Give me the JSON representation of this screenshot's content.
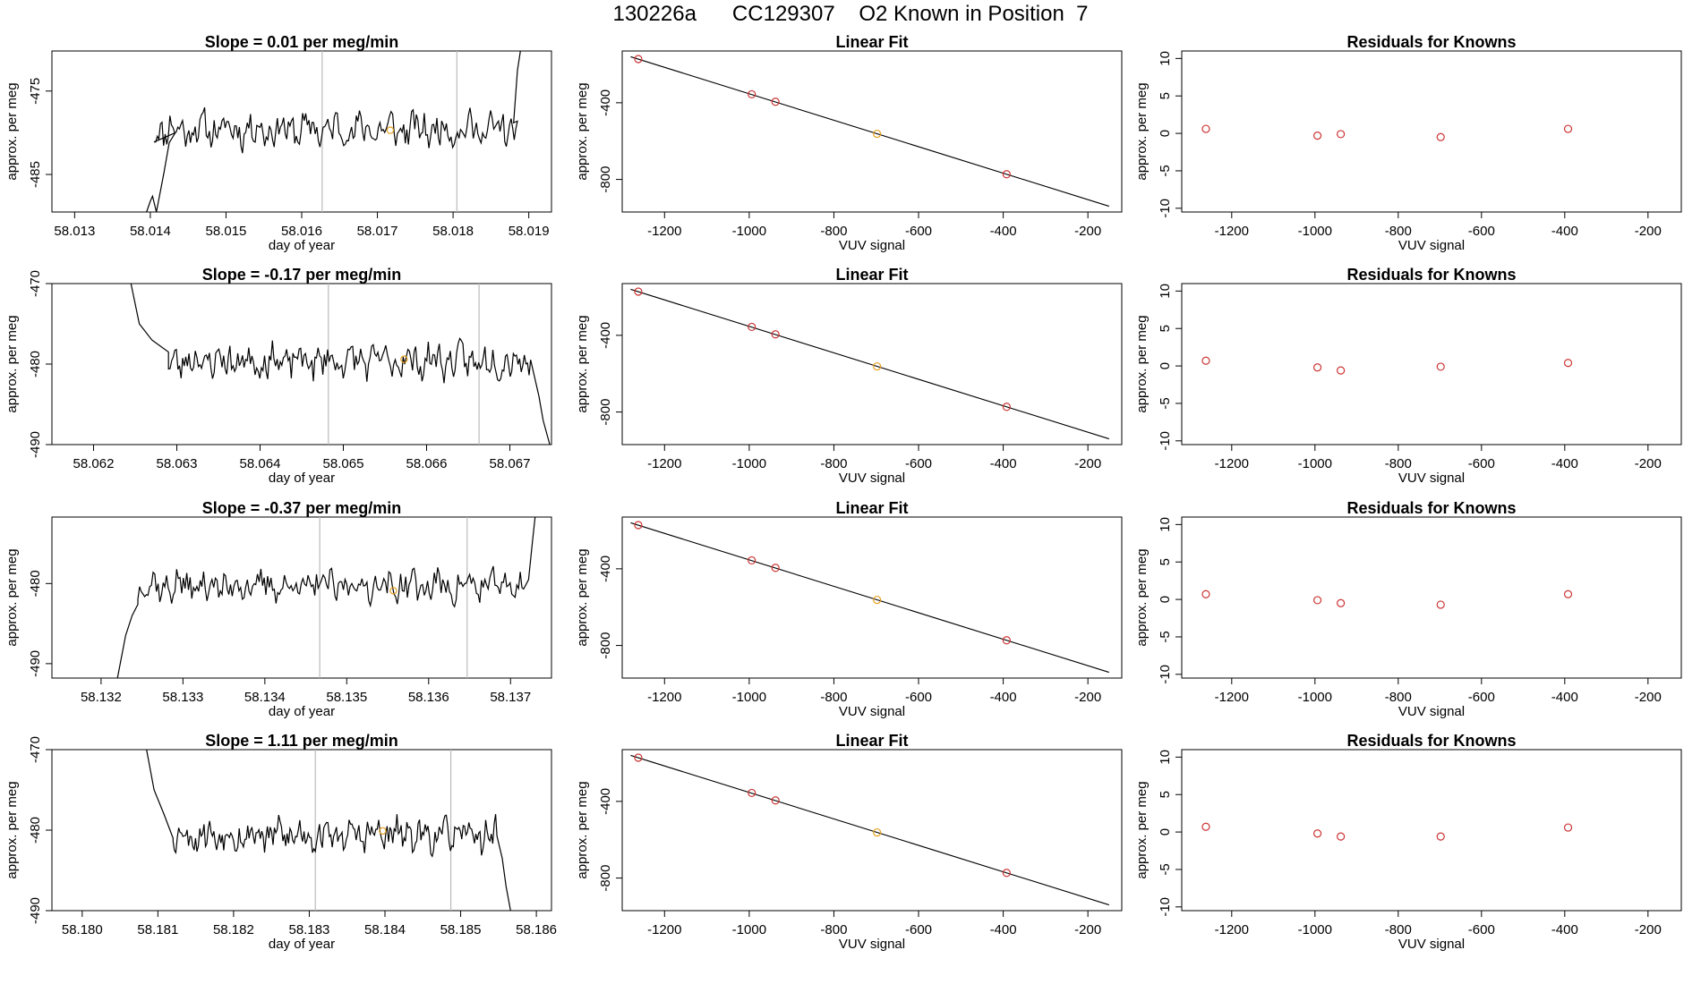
{
  "figure_title": "130226a      CC129307    O2 Known in Position  7",
  "colors": {
    "line": "#000000",
    "known_point": "#cc3333",
    "sample_point": "#e6a020",
    "vline": "#bbbbbb"
  },
  "chart_data": [
    {
      "type": "line",
      "row": 1,
      "panel": "drift",
      "title": "Slope =  0.01  per meg/min",
      "xlabel": "day of year",
      "ylabel": "approx. per meg",
      "xlim": [
        58.0127,
        58.0193
      ],
      "ylim": [
        -489.5,
        -470.2
      ],
      "xticks": [
        58.013,
        58.014,
        58.015,
        58.016,
        58.017,
        58.018,
        58.019
      ],
      "xtick_labels": [
        "58.013",
        "58.014",
        "58.015",
        "58.016",
        "58.017",
        "58.018",
        "58.019"
      ],
      "yticks": [
        -475,
        -485
      ],
      "ytick_labels": [
        "-475",
        "-485"
      ],
      "vlines": [
        58.01627,
        58.01805
      ],
      "marker": {
        "x": 58.01717,
        "y": -479.7
      },
      "trace": {
        "t0": 58.01405,
        "t1": 58.01885,
        "seed": 11,
        "base": -479.6,
        "amp": 2.6,
        "lead": [
          [
            58.01395,
            -489.5
          ],
          [
            58.014,
            -488.2
          ],
          [
            58.01403,
            -487.6
          ],
          [
            58.01408,
            -489.5
          ]
        ],
        "head": [
          [
            58.01408,
            -489.5
          ],
          [
            58.01418,
            -484.8
          ],
          [
            58.01425,
            -481.2
          ],
          [
            58.01433,
            -480.0
          ]
        ],
        "tail": [
          [
            58.0188,
            -478.8
          ],
          [
            58.01885,
            -472.5
          ],
          [
            58.01889,
            -470.2
          ]
        ]
      }
    },
    {
      "type": "scatter",
      "row": 1,
      "panel": "linear-fit",
      "title": "Linear Fit",
      "xlabel": "VUV signal",
      "ylabel": "approx. per meg",
      "xlim": [
        -1300,
        -120
      ],
      "ylim": [
        -970,
        -130
      ],
      "xticks": [
        -1200,
        -1000,
        -800,
        -600,
        -400,
        -200
      ],
      "xtick_labels": [
        "-1200",
        "-1000",
        "-800",
        "-600",
        "-400",
        "-200"
      ],
      "yticks": [
        -400,
        -800
      ],
      "ytick_labels": [
        "-400",
        "-800"
      ],
      "fit_line": [
        [
          -1280,
          -160
        ],
        [
          -150,
          -940
        ]
      ],
      "points": [
        {
          "x": -1262,
          "y": -172,
          "kind": "known"
        },
        {
          "x": -994,
          "y": -356,
          "kind": "known"
        },
        {
          "x": -938,
          "y": -395,
          "kind": "known"
        },
        {
          "x": -698,
          "y": -562,
          "kind": "sample"
        },
        {
          "x": -392,
          "y": -773,
          "kind": "known"
        }
      ]
    },
    {
      "type": "scatter",
      "row": 1,
      "panel": "residuals",
      "title": "Residuals for Knowns",
      "xlabel": "VUV signal",
      "ylabel": "approx. per meg",
      "xlim": [
        -1320,
        -120
      ],
      "ylim": [
        -10.5,
        11
      ],
      "xticks": [
        -1200,
        -1000,
        -800,
        -600,
        -400,
        -200
      ],
      "xtick_labels": [
        "-1200",
        "-1000",
        "-800",
        "-600",
        "-400",
        "-200"
      ],
      "yticks": [
        10,
        5,
        0,
        -5,
        -10
      ],
      "ytick_labels": [
        "10",
        "5",
        "0",
        "-5",
        "-10"
      ],
      "points": [
        {
          "x": -1262,
          "y": 0.6,
          "kind": "known"
        },
        {
          "x": -994,
          "y": -0.3,
          "kind": "known"
        },
        {
          "x": -938,
          "y": -0.1,
          "kind": "known"
        },
        {
          "x": -698,
          "y": -0.5,
          "kind": "known"
        },
        {
          "x": -392,
          "y": 0.6,
          "kind": "known"
        }
      ]
    },
    {
      "type": "line",
      "row": 2,
      "panel": "drift",
      "title": "Slope =  -0.17  per meg/min",
      "xlabel": "day of year",
      "ylabel": "approx. per meg",
      "xlim": [
        58.0615,
        58.0675
      ],
      "ylim": [
        -490,
        -470
      ],
      "xticks": [
        58.062,
        58.063,
        58.064,
        58.065,
        58.066,
        58.067
      ],
      "xtick_labels": [
        "58.062",
        "58.063",
        "58.064",
        "58.065",
        "58.066",
        "58.067"
      ],
      "yticks": [
        -470,
        -480,
        -490
      ],
      "ytick_labels": [
        "-470",
        "-480",
        "-490"
      ],
      "vlines": [
        58.06482,
        58.06663
      ],
      "marker": {
        "x": 58.06573,
        "y": -479.4
      },
      "trace": {
        "t0": 58.0629,
        "t1": 58.06725,
        "seed": 23,
        "base": -479.6,
        "amp": 2.7,
        "lead": [],
        "head": [
          [
            58.06245,
            -470.0
          ],
          [
            58.06255,
            -475.0
          ],
          [
            58.0627,
            -477.0
          ],
          [
            58.0629,
            -478.5
          ]
        ],
        "tail": [
          [
            58.06735,
            -484.0
          ],
          [
            58.0674,
            -487.0
          ],
          [
            58.06748,
            -490.0
          ]
        ]
      }
    },
    {
      "type": "scatter",
      "row": 2,
      "panel": "linear-fit",
      "title": "Linear Fit",
      "xlabel": "VUV signal",
      "ylabel": "approx. per meg",
      "xlim": [
        -1300,
        -120
      ],
      "ylim": [
        -970,
        -130
      ],
      "xticks": [
        -1200,
        -1000,
        -800,
        -600,
        -400,
        -200
      ],
      "xtick_labels": [
        "-1200",
        "-1000",
        "-800",
        "-600",
        "-400",
        "-200"
      ],
      "yticks": [
        -400,
        -800
      ],
      "ytick_labels": [
        "-400",
        "-800"
      ],
      "fit_line": [
        [
          -1280,
          -160
        ],
        [
          -150,
          -940
        ]
      ],
      "points": [
        {
          "x": -1262,
          "y": -172,
          "kind": "known"
        },
        {
          "x": -994,
          "y": -356,
          "kind": "known"
        },
        {
          "x": -938,
          "y": -395,
          "kind": "known"
        },
        {
          "x": -698,
          "y": -562,
          "kind": "sample"
        },
        {
          "x": -392,
          "y": -773,
          "kind": "known"
        }
      ]
    },
    {
      "type": "scatter",
      "row": 2,
      "panel": "residuals",
      "title": "Residuals for Knowns",
      "xlabel": "VUV signal",
      "ylabel": "approx. per meg",
      "xlim": [
        -1320,
        -120
      ],
      "ylim": [
        -10.5,
        11
      ],
      "xticks": [
        -1200,
        -1000,
        -800,
        -600,
        -400,
        -200
      ],
      "xtick_labels": [
        "-1200",
        "-1000",
        "-800",
        "-600",
        "-400",
        "-200"
      ],
      "yticks": [
        10,
        5,
        0,
        -5,
        -10
      ],
      "ytick_labels": [
        "10",
        "5",
        "0",
        "-5",
        "-10"
      ],
      "points": [
        {
          "x": -1262,
          "y": 0.7,
          "kind": "known"
        },
        {
          "x": -994,
          "y": -0.2,
          "kind": "known"
        },
        {
          "x": -938,
          "y": -0.6,
          "kind": "known"
        },
        {
          "x": -698,
          "y": -0.1,
          "kind": "known"
        },
        {
          "x": -392,
          "y": 0.4,
          "kind": "known"
        }
      ]
    },
    {
      "type": "line",
      "row": 3,
      "panel": "drift",
      "title": "Slope =  -0.37  per meg/min",
      "xlabel": "day of year",
      "ylabel": "approx. per meg",
      "xlim": [
        58.1314,
        58.1375
      ],
      "ylim": [
        -491.8,
        -471.7
      ],
      "xticks": [
        58.132,
        58.133,
        58.134,
        58.135,
        58.136,
        58.137
      ],
      "xtick_labels": [
        "58.132",
        "58.133",
        "58.134",
        "58.135",
        "58.136",
        "58.137"
      ],
      "yticks": [
        -480,
        -490
      ],
      "ytick_labels": [
        "-480",
        "-490"
      ],
      "vlines": [
        58.13467,
        58.13647
      ],
      "marker": {
        "x": 58.13557,
        "y": -480.9
      },
      "trace": {
        "t0": 58.13245,
        "t1": 58.13718,
        "seed": 37,
        "base": -480.3,
        "amp": 2.6,
        "lead": [],
        "head": [
          [
            58.1322,
            -491.8
          ],
          [
            58.1323,
            -486.5
          ],
          [
            58.13238,
            -484.0
          ],
          [
            58.13245,
            -482.6
          ]
        ],
        "tail": [
          [
            58.13722,
            -479.5
          ],
          [
            58.13727,
            -474.5
          ],
          [
            58.1373,
            -471.7
          ]
        ]
      }
    },
    {
      "type": "scatter",
      "row": 3,
      "panel": "linear-fit",
      "title": "Linear Fit",
      "xlabel": "VUV signal",
      "ylabel": "approx. per meg",
      "xlim": [
        -1300,
        -120
      ],
      "ylim": [
        -970,
        -130
      ],
      "xticks": [
        -1200,
        -1000,
        -800,
        -600,
        -400,
        -200
      ],
      "xtick_labels": [
        "-1200",
        "-1000",
        "-800",
        "-600",
        "-400",
        "-200"
      ],
      "yticks": [
        -400,
        -800
      ],
      "ytick_labels": [
        "-400",
        "-800"
      ],
      "fit_line": [
        [
          -1280,
          -160
        ],
        [
          -150,
          -940
        ]
      ],
      "points": [
        {
          "x": -1262,
          "y": -172,
          "kind": "known"
        },
        {
          "x": -994,
          "y": -356,
          "kind": "known"
        },
        {
          "x": -938,
          "y": -395,
          "kind": "known"
        },
        {
          "x": -698,
          "y": -562,
          "kind": "sample"
        },
        {
          "x": -392,
          "y": -773,
          "kind": "known"
        }
      ]
    },
    {
      "type": "scatter",
      "row": 3,
      "panel": "residuals",
      "title": "Residuals for Knowns",
      "xlabel": "VUV signal",
      "ylabel": "approx. per meg",
      "xlim": [
        -1320,
        -120
      ],
      "ylim": [
        -10.5,
        11
      ],
      "xticks": [
        -1200,
        -1000,
        -800,
        -600,
        -400,
        -200
      ],
      "xtick_labels": [
        "-1200",
        "-1000",
        "-800",
        "-600",
        "-400",
        "-200"
      ],
      "yticks": [
        10,
        5,
        0,
        -5,
        -10
      ],
      "ytick_labels": [
        "10",
        "5",
        "0",
        "-5",
        "-10"
      ],
      "points": [
        {
          "x": -1262,
          "y": 0.7,
          "kind": "known"
        },
        {
          "x": -994,
          "y": -0.1,
          "kind": "known"
        },
        {
          "x": -938,
          "y": -0.5,
          "kind": "known"
        },
        {
          "x": -698,
          "y": -0.7,
          "kind": "known"
        },
        {
          "x": -392,
          "y": 0.7,
          "kind": "known"
        }
      ]
    },
    {
      "type": "line",
      "row": 4,
      "panel": "drift",
      "title": "Slope =  1.11  per meg/min",
      "xlabel": "day of year",
      "ylabel": "approx. per meg",
      "xlim": [
        58.1796,
        58.1862
      ],
      "ylim": [
        -490,
        -470
      ],
      "xticks": [
        58.18,
        58.181,
        58.182,
        58.183,
        58.184,
        58.185,
        58.186
      ],
      "xtick_labels": [
        "58.180",
        "58.181",
        "58.182",
        "58.183",
        "58.184",
        "58.185",
        "58.186"
      ],
      "yticks": [
        -470,
        -480,
        -490
      ],
      "ytick_labels": [
        "-470",
        "-480",
        "-490"
      ],
      "vlines": [
        58.18308,
        58.18487
      ],
      "marker": {
        "x": 58.18397,
        "y": -480.1
      },
      "trace": {
        "t0": 58.1812,
        "t1": 58.18548,
        "seed": 53,
        "base": -480.6,
        "amp": 2.6,
        "lead": [],
        "head": [
          [
            58.18085,
            -470.0
          ],
          [
            58.18095,
            -475.0
          ],
          [
            58.18108,
            -478.0
          ],
          [
            58.1812,
            -481.0
          ]
        ],
        "tail": [
          [
            58.18555,
            -483.5
          ],
          [
            58.1856,
            -487.0
          ],
          [
            58.18566,
            -490.0
          ]
        ]
      }
    },
    {
      "type": "scatter",
      "row": 4,
      "panel": "linear-fit",
      "title": "Linear Fit",
      "xlabel": "VUV signal",
      "ylabel": "approx. per meg",
      "xlim": [
        -1300,
        -120
      ],
      "ylim": [
        -970,
        -130
      ],
      "xticks": [
        -1200,
        -1000,
        -800,
        -600,
        -400,
        -200
      ],
      "xtick_labels": [
        "-1200",
        "-1000",
        "-800",
        "-600",
        "-400",
        "-200"
      ],
      "yticks": [
        -400,
        -800
      ],
      "ytick_labels": [
        "-400",
        "-800"
      ],
      "fit_line": [
        [
          -1280,
          -160
        ],
        [
          -150,
          -940
        ]
      ],
      "points": [
        {
          "x": -1262,
          "y": -172,
          "kind": "known"
        },
        {
          "x": -994,
          "y": -356,
          "kind": "known"
        },
        {
          "x": -938,
          "y": -395,
          "kind": "known"
        },
        {
          "x": -698,
          "y": -562,
          "kind": "sample"
        },
        {
          "x": -392,
          "y": -773,
          "kind": "known"
        }
      ]
    },
    {
      "type": "scatter",
      "row": 4,
      "panel": "residuals",
      "title": "Residuals for Knowns",
      "xlabel": "VUV signal",
      "ylabel": "approx. per meg",
      "xlim": [
        -1320,
        -120
      ],
      "ylim": [
        -10.5,
        11
      ],
      "xticks": [
        -1200,
        -1000,
        -800,
        -600,
        -400,
        -200
      ],
      "xtick_labels": [
        "-1200",
        "-1000",
        "-800",
        "-600",
        "-400",
        "-200"
      ],
      "yticks": [
        10,
        5,
        0,
        -5,
        -10
      ],
      "ytick_labels": [
        "10",
        "5",
        "0",
        "-5",
        "-10"
      ],
      "points": [
        {
          "x": -1262,
          "y": 0.7,
          "kind": "known"
        },
        {
          "x": -994,
          "y": -0.2,
          "kind": "known"
        },
        {
          "x": -938,
          "y": -0.6,
          "kind": "known"
        },
        {
          "x": -698,
          "y": -0.6,
          "kind": "known"
        },
        {
          "x": -392,
          "y": 0.6,
          "kind": "known"
        }
      ]
    }
  ]
}
